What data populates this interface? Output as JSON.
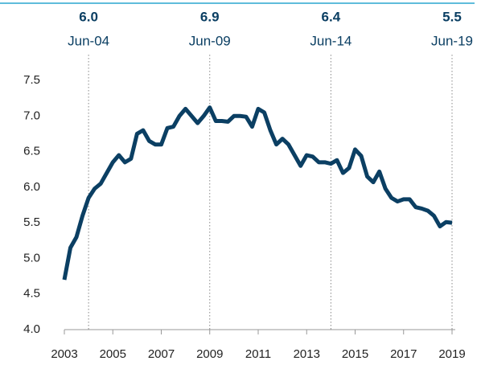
{
  "chart_data": {
    "type": "line",
    "x": [
      2003,
      2003.25,
      2003.5,
      2003.75,
      2004,
      2004.25,
      2004.5,
      2004.75,
      2005,
      2005.25,
      2005.5,
      2005.75,
      2006,
      2006.25,
      2006.5,
      2006.75,
      2007,
      2007.25,
      2007.5,
      2007.75,
      2008,
      2008.25,
      2008.5,
      2008.75,
      2009,
      2009.25,
      2009.5,
      2009.75,
      2010,
      2010.25,
      2010.5,
      2010.75,
      2011,
      2011.25,
      2011.5,
      2011.75,
      2012,
      2012.25,
      2012.5,
      2012.75,
      2013,
      2013.25,
      2013.5,
      2013.75,
      2014,
      2014.25,
      2014.5,
      2014.75,
      2015,
      2015.25,
      2015.5,
      2015.75,
      2016,
      2016.25,
      2016.5,
      2016.75,
      2017,
      2017.25,
      2017.5,
      2017.75,
      2018,
      2018.25,
      2018.5,
      2018.75,
      2019
    ],
    "series": [
      {
        "color": "#0b3f63",
        "values": [
          4.7,
          5.15,
          5.3,
          5.6,
          5.85,
          5.98,
          6.05,
          6.2,
          6.35,
          6.45,
          6.35,
          6.4,
          6.75,
          6.8,
          6.65,
          6.6,
          6.6,
          6.83,
          6.85,
          7.0,
          7.1,
          7.0,
          6.9,
          7.0,
          7.12,
          6.93,
          6.93,
          6.92,
          7.0,
          7.0,
          6.99,
          6.85,
          7.1,
          7.05,
          6.8,
          6.6,
          6.68,
          6.6,
          6.45,
          6.3,
          6.45,
          6.43,
          6.35,
          6.35,
          6.33,
          6.38,
          6.2,
          6.27,
          6.53,
          6.44,
          6.15,
          6.07,
          6.22,
          5.98,
          5.85,
          5.8,
          5.83,
          5.83,
          5.72,
          5.7,
          5.67,
          5.6,
          5.45,
          5.51,
          5.5
        ]
      }
    ],
    "xlim": [
      2003,
      2019
    ],
    "xticks": [
      2003,
      2005,
      2007,
      2009,
      2011,
      2013,
      2015,
      2017,
      2019
    ],
    "ylim": [
      4,
      7.5
    ],
    "yticks": [
      {
        "value": 4,
        "label": "4.0"
      },
      4.5,
      {
        "value": 5,
        "label": "5.0"
      },
      5.5,
      {
        "value": 6,
        "label": "6.0"
      },
      6.5,
      {
        "value": 7,
        "label": "7.0"
      },
      7.5
    ],
    "annotations": [
      {
        "x": 2004,
        "value": 6,
        "value_label": "6.0",
        "label": "Jun-04"
      },
      {
        "x": 2009,
        "value": 6.9,
        "value_label": "6.9",
        "label": "Jun-09"
      },
      {
        "x": 2014,
        "value": 6.4,
        "value_label": "6.4",
        "label": "Jun-14"
      },
      {
        "x": 2019,
        "value": 5.5,
        "value_label": "5.5",
        "label": "Jun-19"
      }
    ]
  }
}
